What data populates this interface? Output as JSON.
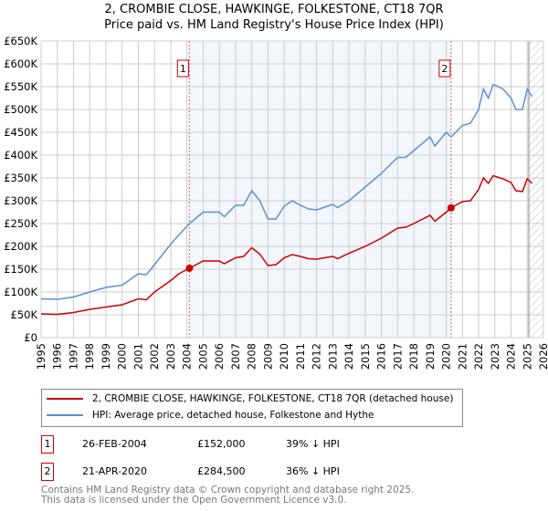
{
  "chart_data": {
    "type": "line",
    "title": "2, CROMBIE CLOSE, HAWKINGE, FOLKESTONE, CT18 7QR",
    "subtitle": "Price paid vs. HM Land Registry's House Price Index (HPI)",
    "xlim": [
      1995,
      2026
    ],
    "ylim": [
      0,
      650000
    ],
    "yticks": [
      0,
      50000,
      100000,
      150000,
      200000,
      250000,
      300000,
      350000,
      400000,
      450000,
      500000,
      550000,
      600000,
      650000
    ],
    "ytick_labels": [
      "£0",
      "£50K",
      "£100K",
      "£150K",
      "£200K",
      "£250K",
      "£300K",
      "£350K",
      "£400K",
      "£450K",
      "£500K",
      "£550K",
      "£600K",
      "£650K"
    ],
    "xticks": [
      1995,
      1996,
      1997,
      1998,
      1999,
      2000,
      2001,
      2002,
      2003,
      2004,
      2005,
      2006,
      2007,
      2008,
      2009,
      2010,
      2011,
      2012,
      2013,
      2014,
      2015,
      2016,
      2017,
      2018,
      2019,
      2020,
      2021,
      2022,
      2023,
      2024,
      2025,
      2026
    ],
    "grid": true,
    "shaded_range": [
      2004.15,
      2020.3
    ],
    "future_hatch_from": 2025.1,
    "series": [
      {
        "name": "2, CROMBIE CLOSE, HAWKINGE, FOLKESTONE, CT18 7QR (detached house)",
        "color": "#cc0000",
        "x": [
          1995,
          1996,
          1997,
          1998,
          1999,
          2000,
          2001,
          2001.5,
          2002,
          2003,
          2003.5,
          2004.15,
          2005,
          2006,
          2006.3,
          2007,
          2007.5,
          2008,
          2008.5,
          2009,
          2009.5,
          2010,
          2010.5,
          2011,
          2011.5,
          2012,
          2013,
          2013.3,
          2014,
          2015,
          2016,
          2017,
          2017.5,
          2018,
          2019,
          2019.3,
          2020,
          2020.3,
          2021,
          2021.5,
          2022,
          2022.3,
          2022.6,
          2022.9,
          2023.5,
          2024,
          2024.3,
          2024.7,
          2025,
          2025.3
        ],
        "y": [
          52000,
          51000,
          55000,
          62000,
          67000,
          72000,
          85000,
          83000,
          100000,
          125000,
          140000,
          152000,
          168000,
          168000,
          162000,
          175000,
          178000,
          197000,
          183000,
          158000,
          160000,
          175000,
          182000,
          178000,
          173000,
          172000,
          178000,
          173000,
          185000,
          200000,
          218000,
          240000,
          242000,
          250000,
          268000,
          255000,
          275000,
          284500,
          298000,
          300000,
          325000,
          350000,
          338000,
          355000,
          348000,
          340000,
          322000,
          320000,
          348000,
          338000
        ]
      },
      {
        "name": "HPI: Average price, detached house, Folkestone and Hythe",
        "color": "#5b8fd4",
        "x": [
          1995,
          1996,
          1997,
          1998,
          1999,
          2000,
          2001,
          2001.5,
          2002,
          2003,
          2003.5,
          2004.15,
          2005,
          2006,
          2006.3,
          2007,
          2007.5,
          2008,
          2008.5,
          2009,
          2009.5,
          2010,
          2010.5,
          2011,
          2011.5,
          2012,
          2013,
          2013.3,
          2014,
          2015,
          2016,
          2017,
          2017.5,
          2018,
          2019,
          2019.3,
          2020,
          2020.3,
          2021,
          2021.5,
          2022,
          2022.3,
          2022.6,
          2022.9,
          2023.5,
          2024,
          2024.3,
          2024.7,
          2025,
          2025.3
        ],
        "y": [
          85000,
          84000,
          89000,
          100000,
          110000,
          115000,
          140000,
          138000,
          160000,
          205000,
          225000,
          250000,
          275000,
          275000,
          265000,
          290000,
          290000,
          322000,
          300000,
          260000,
          260000,
          288000,
          300000,
          290000,
          282000,
          280000,
          292000,
          285000,
          300000,
          330000,
          360000,
          395000,
          395000,
          410000,
          440000,
          420000,
          450000,
          440000,
          465000,
          470000,
          500000,
          545000,
          525000,
          555000,
          545000,
          525000,
          500000,
          500000,
          545000,
          528000
        ]
      }
    ],
    "markers": [
      {
        "label": "1",
        "x": 2004.15,
        "y": 152000
      },
      {
        "label": "2",
        "x": 2020.3,
        "y": 284500
      }
    ]
  },
  "legend": [
    {
      "label": "2, CROMBIE CLOSE, HAWKINGE, FOLKESTONE, CT18 7QR (detached house)",
      "color": "#cc0000"
    },
    {
      "label": "HPI: Average price, detached house, Folkestone and Hythe",
      "color": "#5b8fd4"
    }
  ],
  "transactions": [
    {
      "num": "1",
      "date": "26-FEB-2004",
      "price": "£152,000",
      "hpi": "39% ↓ HPI"
    },
    {
      "num": "2",
      "date": "21-APR-2020",
      "price": "£284,500",
      "hpi": "36% ↓ HPI"
    }
  ],
  "footer": {
    "line1": "Contains HM Land Registry data © Crown copyright and database right 2025.",
    "line2": "This data is licensed under the Open Government Licence v3.0."
  }
}
